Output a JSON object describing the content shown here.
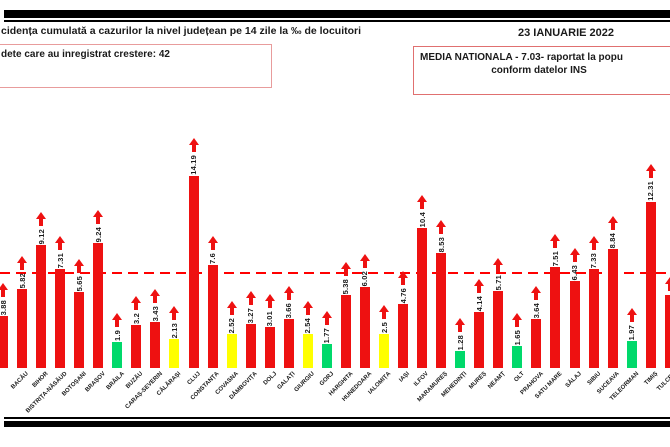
{
  "header": {
    "title": "cidența cumulată a cazurilor la nivel județean pe 14 zile la ‰ de locuitori",
    "date": "23 IANUARIE 2022",
    "counties_increase_box": "dete care au inregistrat crestere: 42",
    "national_avg_box_line1": "MEDIA NATIONALA - 7.03-  raportat la popu",
    "national_avg_box_line2": "conform datelor INS"
  },
  "chart_data": {
    "type": "bar",
    "title": "cidența cumulată a cazurilor la nivel județean pe 14 zile la ‰ de locuitori",
    "xlabel": "",
    "ylabel": "",
    "ylim": [
      0,
      15
    ],
    "grid": false,
    "legend_position": "none",
    "average_line": {
      "value": 7.03,
      "style": "dashed",
      "color": "#ff0000"
    },
    "arrow_marker": "red-up-arrow-above-every-bar",
    "palette": {
      "red": "#ee1111",
      "yellow": "#ffff00",
      "green": "#00d96b"
    },
    "arrow_color": "#ee1111",
    "bars": [
      {
        "county": "",
        "value": 3.88,
        "value_label": "3.88",
        "color": "red",
        "clipped": "left-edge"
      },
      {
        "county": "BACĂU",
        "value": 5.82,
        "value_label": "5.82",
        "color": "red"
      },
      {
        "county": "BIHOR",
        "value": 9.12,
        "value_label": "9.12",
        "color": "red"
      },
      {
        "county": "BISTRIȚA-NĂSĂUD",
        "value": 7.31,
        "value_label": "7.31",
        "color": "red"
      },
      {
        "county": "BOTOȘANI",
        "value": 5.65,
        "value_label": "5.65",
        "color": "red"
      },
      {
        "county": "BRAȘOV",
        "value": 9.24,
        "value_label": "9.24",
        "color": "red"
      },
      {
        "county": "BRĂILA",
        "value": 1.9,
        "value_label": "1.9",
        "color": "green"
      },
      {
        "county": "BUZĂU",
        "value": 3.2,
        "value_label": "3.2",
        "color": "red"
      },
      {
        "county": "CARAȘ-SEVERIN",
        "value": 3.43,
        "value_label": "3.43",
        "color": "red"
      },
      {
        "county": "CĂLĂRAȘI",
        "value": 2.13,
        "value_label": "2.13",
        "color": "yellow"
      },
      {
        "county": "CLUJ",
        "value": 14.19,
        "value_label": "14.19",
        "color": "red"
      },
      {
        "county": "CONSTANȚA",
        "value": 7.6,
        "value_label": "7.6",
        "color": "red"
      },
      {
        "county": "COVASNA",
        "value": 2.52,
        "value_label": "2.52",
        "color": "yellow"
      },
      {
        "county": "DÂMBOVIȚA",
        "value": 3.27,
        "value_label": "3.27",
        "color": "red"
      },
      {
        "county": "DOLJ",
        "value": 3.01,
        "value_label": "3.01",
        "color": "red"
      },
      {
        "county": "GALAȚI",
        "value": 3.66,
        "value_label": "3.66",
        "color": "red"
      },
      {
        "county": "GIURGIU",
        "value": 2.54,
        "value_label": "2.54",
        "color": "yellow"
      },
      {
        "county": "GORJ",
        "value": 1.77,
        "value_label": "1.77",
        "color": "green"
      },
      {
        "county": "HARGHITA",
        "value": 5.38,
        "value_label": "5.38",
        "color": "red"
      },
      {
        "county": "HUNEDOARA",
        "value": 6.02,
        "value_label": "6.02",
        "color": "red"
      },
      {
        "county": "IALOMIȚA",
        "value": 2.5,
        "value_label": "2.5",
        "color": "yellow"
      },
      {
        "county": "IAȘI",
        "value": 4.76,
        "value_label": "4.76",
        "color": "red"
      },
      {
        "county": "ILFOV",
        "value": 10.4,
        "value_label": "10.4",
        "color": "red"
      },
      {
        "county": "MARAMUREȘ",
        "value": 8.53,
        "value_label": "8.53",
        "color": "red"
      },
      {
        "county": "MEHEDINȚI",
        "value": 1.28,
        "value_label": "1.28",
        "color": "green"
      },
      {
        "county": "MUREȘ",
        "value": 4.14,
        "value_label": "4.14",
        "color": "red"
      },
      {
        "county": "NEAMȚ",
        "value": 5.71,
        "value_label": "5.71",
        "color": "red"
      },
      {
        "county": "OLT",
        "value": 1.65,
        "value_label": "1.65",
        "color": "green"
      },
      {
        "county": "PRAHOVA",
        "value": 3.64,
        "value_label": "3.64",
        "color": "red"
      },
      {
        "county": "SATU MARE",
        "value": 7.51,
        "value_label": "7.51",
        "color": "red"
      },
      {
        "county": "SĂLAJ",
        "value": 6.43,
        "value_label": "6.43",
        "color": "red"
      },
      {
        "county": "SIBIU",
        "value": 7.33,
        "value_label": "7.33",
        "color": "red"
      },
      {
        "county": "SUCEAVA",
        "value": 8.84,
        "value_label": "8.84",
        "color": "red"
      },
      {
        "county": "TELEORMAN",
        "value": 1.97,
        "value_label": "1.97",
        "color": "green"
      },
      {
        "county": "TIMIȘ",
        "value": 12.31,
        "value_label": "12.31",
        "color": "red"
      },
      {
        "county": "TULCEA",
        "value": null,
        "value_estimate": 5.4,
        "value_label": "",
        "color": "red",
        "clipped": "right-edge"
      }
    ]
  }
}
